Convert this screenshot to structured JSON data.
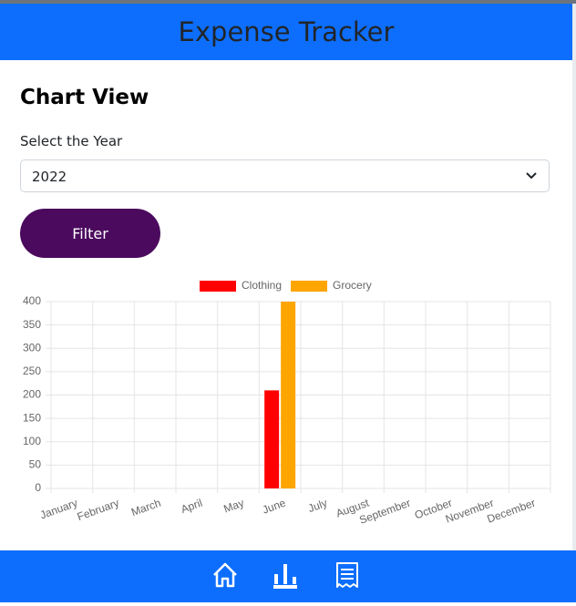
{
  "header": {
    "title": "Expense Tracker"
  },
  "page": {
    "heading": "Chart View",
    "select_label": "Select the Year",
    "selected_year": "2022",
    "button": "Filter"
  },
  "chart_data": {
    "type": "bar",
    "categories": [
      "January",
      "February",
      "March",
      "April",
      "May",
      "June",
      "July",
      "August",
      "September",
      "October",
      "November",
      "December"
    ],
    "series": [
      {
        "name": "Clothing",
        "color": "#ff0000",
        "values": [
          0,
          0,
          0,
          0,
          0,
          210,
          0,
          0,
          0,
          0,
          0,
          0
        ]
      },
      {
        "name": "Grocery",
        "color": "#ffa500",
        "values": [
          0,
          0,
          0,
          0,
          0,
          400,
          0,
          0,
          0,
          0,
          0,
          0
        ]
      }
    ],
    "ylim": [
      0,
      400
    ],
    "yticks": [
      0,
      50,
      100,
      150,
      200,
      250,
      300,
      350,
      400
    ],
    "grid": true,
    "legend": "top"
  }
}
